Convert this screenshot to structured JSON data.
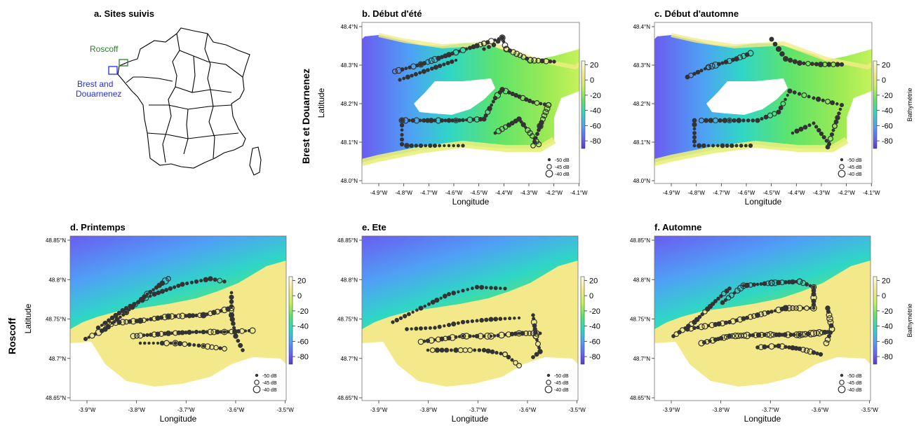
{
  "overview": {
    "title": "a. Sites suivis",
    "site_roscoff": "Roscoff",
    "site_brest": [
      "Brest and",
      "Douarnenez"
    ],
    "color_roscoff": "#2e7d32",
    "color_brest": "#1f2bff"
  },
  "row_labels": {
    "brest": "Brest et Douarnenez",
    "roscoff": "Roscoff"
  },
  "axes": {
    "xlabel": "Longitude",
    "ylabel": "Latitude"
  },
  "brest_ticks": {
    "x": [
      "-4.9°W",
      "-4.8°W",
      "-4.7°W",
      "-4.6°W",
      "-4.5°W",
      "-4.4°W",
      "-4.3°W",
      "-4.2°W",
      "-4.1°W"
    ],
    "y": [
      "48.4°N",
      "48.3°N",
      "48.2°N",
      "48.1°N",
      "48.0°N"
    ]
  },
  "roscoff_ticks": {
    "x": [
      "-3.9°W",
      "-3.8°W",
      "-3.7°W",
      "-3.6°W",
      "-3.5°W"
    ],
    "y": [
      "48.85°N",
      "48.8°N",
      "48.75°N",
      "48.7°N",
      "48.65°N"
    ]
  },
  "colorbar": {
    "label": "Bathymétrie",
    "ticks": [
      "20",
      "0",
      "-20",
      "-40",
      "-60",
      "-80"
    ],
    "range": [
      -90,
      25
    ],
    "colors": [
      "#fffbe9",
      "#f3e98a",
      "#c6f25a",
      "#5ee36b",
      "#2fd6c6",
      "#4fa0f5",
      "#6a5cf0",
      "#4a3fc8"
    ]
  },
  "size_legend": [
    "-50 dB",
    "-45 dB",
    "-40 dB"
  ],
  "panels": [
    {
      "title": "b. Début d'été"
    },
    {
      "title": "c. Début d'automne"
    },
    {
      "title": "d. Printemps"
    },
    {
      "title": "e. Ete"
    },
    {
      "title": "f. Automne"
    }
  ]
}
